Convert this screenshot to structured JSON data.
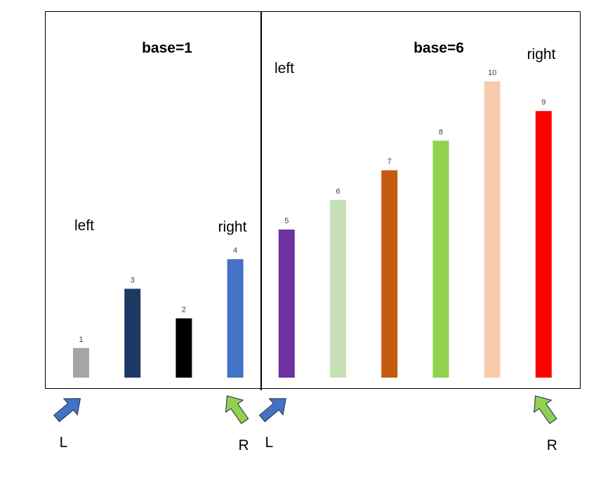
{
  "chart_data": {
    "type": "bar",
    "title": "",
    "xlabel": "",
    "ylabel": "",
    "ylim": [
      0,
      10
    ],
    "grid": false,
    "categories": [
      "1",
      "3",
      "2",
      "4",
      "5",
      "6",
      "7",
      "8",
      "10",
      "9"
    ],
    "values": [
      1,
      3,
      2,
      4,
      5,
      6,
      7,
      8,
      10,
      9
    ],
    "colors": [
      "#A5A5A5",
      "#203864",
      "#000000",
      "#4472C4",
      "#7030A0",
      "#C5E0B4",
      "#C55A11",
      "#92D050",
      "#F8CBAD",
      "#FF0000"
    ],
    "panels": [
      {
        "heading": "base=1",
        "left_label": "left",
        "right_label": "right",
        "bar_indices": [
          0,
          1,
          2,
          3
        ]
      },
      {
        "heading": "base=6",
        "left_label": "left",
        "right_label": "right",
        "bar_indices": [
          4,
          5,
          6,
          7,
          8,
          9
        ]
      }
    ],
    "pointers": [
      {
        "label": "L",
        "color": "#4472C4",
        "at_bar": 0
      },
      {
        "label": "R",
        "color": "#92D050",
        "at_bar": 3
      },
      {
        "label": "L",
        "color": "#4472C4",
        "at_bar": 4
      },
      {
        "label": "R",
        "color": "#92D050",
        "at_bar": 9
      }
    ]
  }
}
